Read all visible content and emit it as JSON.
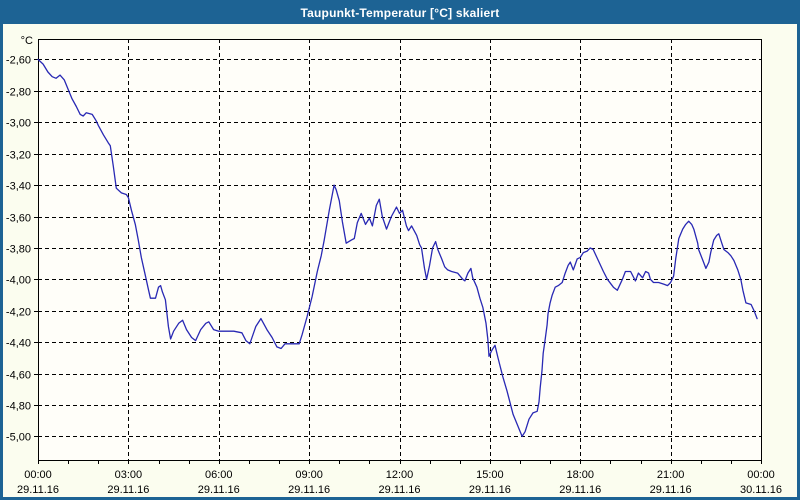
{
  "window": {
    "title": "Taupunkt-Temperatur [°C] skaliert"
  },
  "colors": {
    "titlebar": "#1d6394",
    "window_border": "#1d6394",
    "window_background": "#fbfdef",
    "plot_background": "#fffef9",
    "series_line": "#2929b4",
    "grid": "#000000",
    "title_text": "#ffffff",
    "label_text": "#000000"
  },
  "chart_data": {
    "type": "line",
    "title": "Taupunkt-Temperatur [°C] skaliert",
    "y_unit_label": "°C",
    "legend": "none",
    "grid": "dashed",
    "x_axis": {
      "hours_span": 24,
      "gridline_hours": [
        3,
        6,
        9,
        12,
        15,
        18,
        21
      ],
      "minor_tick_every_hours": 1,
      "tick_labels": [
        {
          "hour": 0,
          "time": "00:00",
          "date": "29.11.16"
        },
        {
          "hour": 3,
          "time": "03:00",
          "date": "29.11.16"
        },
        {
          "hour": 6,
          "time": "06:00",
          "date": "29.11.16"
        },
        {
          "hour": 9,
          "time": "09:00",
          "date": "29.11.16"
        },
        {
          "hour": 12,
          "time": "12:00",
          "date": "29.11.16"
        },
        {
          "hour": 15,
          "time": "15:00",
          "date": "29.11.16"
        },
        {
          "hour": 18,
          "time": "18:00",
          "date": "29.11.16"
        },
        {
          "hour": 21,
          "time": "21:00",
          "date": "29.11.16"
        },
        {
          "hour": 24,
          "time": "00:00",
          "date": "30.11.16"
        }
      ]
    },
    "y_axis": {
      "top_value": -2.47,
      "bottom_value": -5.15,
      "tick_values": [
        -2.6,
        -2.8,
        -3.0,
        -3.2,
        -3.4,
        -3.6,
        -3.8,
        -4.0,
        -4.2,
        -4.4,
        -4.6,
        -4.8,
        -5.0
      ],
      "tick_labels": [
        "-2,60",
        "-2,80",
        "-3,00",
        "-3,20",
        "-3,40",
        "-3,60",
        "-3,80",
        "-4,00",
        "-4,20",
        "-4,40",
        "-4,60",
        "-4,80",
        "-5,00"
      ]
    },
    "series": [
      {
        "name": "Taupunkt-Temperatur",
        "points": [
          [
            0.0,
            -2.6
          ],
          [
            0.17,
            -2.63
          ],
          [
            0.33,
            -2.68
          ],
          [
            0.47,
            -2.71
          ],
          [
            0.6,
            -2.72
          ],
          [
            0.73,
            -2.7
          ],
          [
            0.87,
            -2.73
          ],
          [
            1.0,
            -2.79
          ],
          [
            1.13,
            -2.85
          ],
          [
            1.27,
            -2.9
          ],
          [
            1.4,
            -2.95
          ],
          [
            1.5,
            -2.96
          ],
          [
            1.6,
            -2.94
          ],
          [
            1.8,
            -2.95
          ],
          [
            1.93,
            -2.99
          ],
          [
            2.0,
            -3.02
          ],
          [
            2.17,
            -3.08
          ],
          [
            2.33,
            -3.13
          ],
          [
            2.4,
            -3.15
          ],
          [
            2.5,
            -3.28
          ],
          [
            2.6,
            -3.42
          ],
          [
            2.77,
            -3.45
          ],
          [
            2.93,
            -3.46
          ],
          [
            3.0,
            -3.48
          ],
          [
            3.1,
            -3.56
          ],
          [
            3.23,
            -3.65
          ],
          [
            3.33,
            -3.75
          ],
          [
            3.43,
            -3.86
          ],
          [
            3.57,
            -3.98
          ],
          [
            3.67,
            -4.07
          ],
          [
            3.73,
            -4.12
          ],
          [
            3.9,
            -4.12
          ],
          [
            4.0,
            -4.05
          ],
          [
            4.07,
            -4.04
          ],
          [
            4.13,
            -4.08
          ],
          [
            4.23,
            -4.13
          ],
          [
            4.33,
            -4.3
          ],
          [
            4.4,
            -4.38
          ],
          [
            4.5,
            -4.33
          ],
          [
            4.67,
            -4.28
          ],
          [
            4.8,
            -4.26
          ],
          [
            4.93,
            -4.32
          ],
          [
            5.1,
            -4.37
          ],
          [
            5.23,
            -4.39
          ],
          [
            5.4,
            -4.32
          ],
          [
            5.57,
            -4.28
          ],
          [
            5.67,
            -4.27
          ],
          [
            5.83,
            -4.32
          ],
          [
            6.0,
            -4.33
          ],
          [
            6.5,
            -4.33
          ],
          [
            6.77,
            -4.34
          ],
          [
            6.9,
            -4.39
          ],
          [
            7.03,
            -4.41
          ],
          [
            7.23,
            -4.3
          ],
          [
            7.4,
            -4.25
          ],
          [
            7.6,
            -4.32
          ],
          [
            7.77,
            -4.37
          ],
          [
            7.93,
            -4.43
          ],
          [
            8.07,
            -4.44
          ],
          [
            8.2,
            -4.41
          ],
          [
            8.5,
            -4.41
          ],
          [
            8.67,
            -4.41
          ],
          [
            8.77,
            -4.35
          ],
          [
            8.93,
            -4.24
          ],
          [
            9.1,
            -4.11
          ],
          [
            9.27,
            -3.95
          ],
          [
            9.4,
            -3.85
          ],
          [
            9.5,
            -3.75
          ],
          [
            9.67,
            -3.56
          ],
          [
            9.83,
            -3.4
          ],
          [
            9.9,
            -3.43
          ],
          [
            10.0,
            -3.5
          ],
          [
            10.1,
            -3.63
          ],
          [
            10.23,
            -3.77
          ],
          [
            10.4,
            -3.75
          ],
          [
            10.5,
            -3.74
          ],
          [
            10.6,
            -3.64
          ],
          [
            10.73,
            -3.58
          ],
          [
            10.87,
            -3.65
          ],
          [
            11.0,
            -3.61
          ],
          [
            11.1,
            -3.66
          ],
          [
            11.23,
            -3.53
          ],
          [
            11.33,
            -3.49
          ],
          [
            11.43,
            -3.6
          ],
          [
            11.57,
            -3.68
          ],
          [
            11.73,
            -3.6
          ],
          [
            11.9,
            -3.54
          ],
          [
            12.0,
            -3.58
          ],
          [
            12.1,
            -3.56
          ],
          [
            12.23,
            -3.66
          ],
          [
            12.3,
            -3.69
          ],
          [
            12.4,
            -3.66
          ],
          [
            12.57,
            -3.72
          ],
          [
            12.67,
            -3.78
          ],
          [
            12.73,
            -3.8
          ],
          [
            12.83,
            -3.93
          ],
          [
            12.9,
            -4.0
          ],
          [
            13.0,
            -3.91
          ],
          [
            13.1,
            -3.8
          ],
          [
            13.2,
            -3.76
          ],
          [
            13.27,
            -3.81
          ],
          [
            13.4,
            -3.87
          ],
          [
            13.5,
            -3.92
          ],
          [
            13.6,
            -3.94
          ],
          [
            13.73,
            -3.95
          ],
          [
            13.93,
            -3.96
          ],
          [
            14.1,
            -4.0
          ],
          [
            14.17,
            -4.01
          ],
          [
            14.27,
            -3.96
          ],
          [
            14.37,
            -3.93
          ],
          [
            14.43,
            -3.99
          ],
          [
            14.57,
            -4.05
          ],
          [
            14.67,
            -4.12
          ],
          [
            14.77,
            -4.18
          ],
          [
            14.87,
            -4.28
          ],
          [
            14.93,
            -4.38
          ],
          [
            14.97,
            -4.49
          ],
          [
            15.07,
            -4.45
          ],
          [
            15.17,
            -4.42
          ],
          [
            15.27,
            -4.5
          ],
          [
            15.43,
            -4.62
          ],
          [
            15.57,
            -4.71
          ],
          [
            15.77,
            -4.86
          ],
          [
            15.9,
            -4.92
          ],
          [
            16.07,
            -5.0
          ],
          [
            16.17,
            -4.97
          ],
          [
            16.3,
            -4.89
          ],
          [
            16.43,
            -4.85
          ],
          [
            16.57,
            -4.84
          ],
          [
            16.63,
            -4.78
          ],
          [
            16.67,
            -4.69
          ],
          [
            16.73,
            -4.58
          ],
          [
            16.77,
            -4.47
          ],
          [
            16.83,
            -4.39
          ],
          [
            16.9,
            -4.29
          ],
          [
            16.93,
            -4.22
          ],
          [
            17.0,
            -4.15
          ],
          [
            17.07,
            -4.1
          ],
          [
            17.17,
            -4.05
          ],
          [
            17.27,
            -4.04
          ],
          [
            17.4,
            -4.02
          ],
          [
            17.5,
            -3.96
          ],
          [
            17.6,
            -3.91
          ],
          [
            17.67,
            -3.89
          ],
          [
            17.73,
            -3.92
          ],
          [
            17.77,
            -3.94
          ],
          [
            17.9,
            -3.87
          ],
          [
            18.0,
            -3.86
          ],
          [
            18.1,
            -3.83
          ],
          [
            18.23,
            -3.82
          ],
          [
            18.33,
            -3.8
          ],
          [
            18.43,
            -3.81
          ],
          [
            18.6,
            -3.88
          ],
          [
            18.77,
            -3.95
          ],
          [
            18.9,
            -4.0
          ],
          [
            19.1,
            -4.05
          ],
          [
            19.23,
            -4.07
          ],
          [
            19.4,
            -4.0
          ],
          [
            19.5,
            -3.95
          ],
          [
            19.67,
            -3.95
          ],
          [
            19.83,
            -4.01
          ],
          [
            19.93,
            -3.96
          ],
          [
            20.07,
            -3.99
          ],
          [
            20.17,
            -3.95
          ],
          [
            20.27,
            -3.96
          ],
          [
            20.33,
            -4.0
          ],
          [
            20.43,
            -4.02
          ],
          [
            20.6,
            -4.02
          ],
          [
            20.77,
            -4.03
          ],
          [
            20.9,
            -4.04
          ],
          [
            21.0,
            -4.02
          ],
          [
            21.1,
            -3.98
          ],
          [
            21.17,
            -3.87
          ],
          [
            21.27,
            -3.74
          ],
          [
            21.4,
            -3.68
          ],
          [
            21.5,
            -3.65
          ],
          [
            21.6,
            -3.63
          ],
          [
            21.7,
            -3.65
          ],
          [
            21.77,
            -3.68
          ],
          [
            21.9,
            -3.77
          ],
          [
            21.93,
            -3.81
          ],
          [
            22.07,
            -3.88
          ],
          [
            22.17,
            -3.93
          ],
          [
            22.27,
            -3.89
          ],
          [
            22.33,
            -3.83
          ],
          [
            22.43,
            -3.75
          ],
          [
            22.53,
            -3.72
          ],
          [
            22.6,
            -3.71
          ],
          [
            22.7,
            -3.77
          ],
          [
            22.77,
            -3.81
          ],
          [
            22.9,
            -3.83
          ],
          [
            23.0,
            -3.85
          ],
          [
            23.1,
            -3.88
          ],
          [
            23.23,
            -3.94
          ],
          [
            23.33,
            -4.0
          ],
          [
            23.4,
            -4.07
          ],
          [
            23.5,
            -4.15
          ],
          [
            23.67,
            -4.16
          ],
          [
            23.77,
            -4.2
          ],
          [
            23.87,
            -4.25
          ]
        ]
      }
    ]
  }
}
